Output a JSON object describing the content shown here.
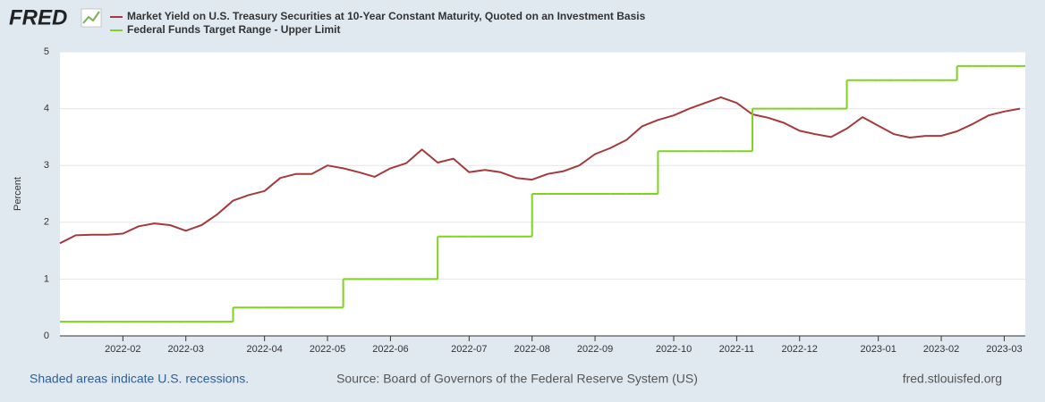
{
  "chart_data": {
    "type": "line",
    "logo": "FRED",
    "ylabel": "Percent",
    "recession_note": "Shaded areas indicate U.S. recessions.",
    "source": "Source: Board of Governors of the Federal Reserve System (US)",
    "site": "fred.stlouisfed.org",
    "categories": [
      null,
      null,
      null,
      null,
      "2022-02",
      null,
      null,
      null,
      "2022-03",
      null,
      null,
      null,
      null,
      "2022-04",
      null,
      null,
      null,
      "2022-05",
      null,
      null,
      null,
      "2022-06",
      null,
      null,
      null,
      null,
      "2022-07",
      null,
      null,
      null,
      "2022-08",
      null,
      null,
      null,
      "2022-09",
      null,
      null,
      null,
      null,
      "2022-10",
      null,
      null,
      null,
      "2022-11",
      null,
      null,
      null,
      "2022-12",
      null,
      null,
      null,
      null,
      "2023-01",
      null,
      null,
      null,
      "2023-02",
      null,
      null,
      null,
      "2023-03",
      null
    ],
    "series": [
      {
        "name": "Market Yield on U.S. Treasury Securities at 10-Year Constant Maturity, Quoted on an Investment Basis",
        "color": "#a6393c",
        "step": false,
        "values": [
          1.63,
          1.77,
          1.78,
          1.78,
          1.8,
          1.93,
          1.98,
          1.95,
          1.85,
          1.95,
          2.14,
          2.38,
          2.48,
          2.55,
          2.78,
          2.85,
          2.85,
          3.0,
          2.95,
          2.88,
          2.8,
          2.95,
          3.04,
          3.28,
          3.05,
          3.12,
          2.88,
          2.92,
          2.88,
          2.78,
          2.75,
          2.85,
          2.9,
          3.0,
          3.2,
          3.31,
          3.45,
          3.69,
          3.8,
          3.88,
          4.0,
          4.1,
          4.2,
          4.1,
          3.9,
          3.84,
          3.75,
          3.61,
          3.55,
          3.5,
          3.65,
          3.85,
          3.7,
          3.55,
          3.49,
          3.52,
          3.52,
          3.6,
          3.73,
          3.88,
          3.95,
          4.0
        ]
      },
      {
        "name": "Federal Funds Target Range - Upper Limit",
        "color": "#7ed321",
        "step": true,
        "values": [
          0.25,
          0.25,
          0.25,
          0.25,
          0.25,
          0.25,
          0.25,
          0.25,
          0.25,
          0.25,
          0.25,
          0.5,
          0.5,
          0.5,
          0.5,
          0.5,
          0.5,
          0.5,
          1,
          1,
          1,
          1,
          1,
          1,
          1.75,
          1.75,
          1.75,
          1.75,
          1.75,
          1.75,
          2.5,
          2.5,
          2.5,
          2.5,
          2.5,
          2.5,
          2.5,
          2.5,
          3.25,
          3.25,
          3.25,
          3.25,
          3.25,
          3.25,
          4,
          4,
          4,
          4,
          4,
          4,
          4.5,
          4.5,
          4.5,
          4.5,
          4.5,
          4.5,
          4.5,
          4.75,
          4.75,
          4.75,
          4.75,
          4.75
        ]
      }
    ],
    "ylim": [
      0,
      5
    ],
    "yticks": [
      0,
      1,
      2,
      3,
      4,
      5
    ],
    "grid": true
  }
}
